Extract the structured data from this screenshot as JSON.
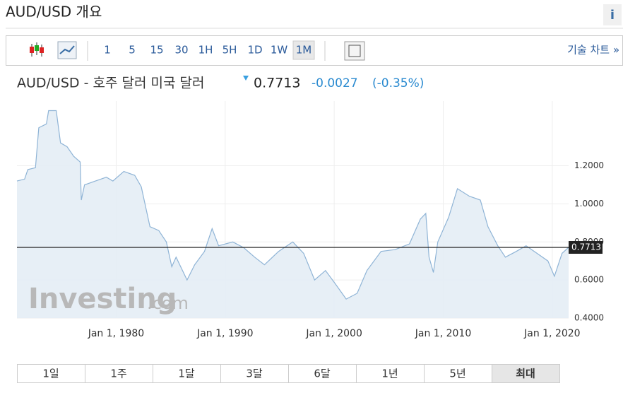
{
  "header": {
    "title": "AUD/USD 개요",
    "info": "i"
  },
  "toolbar": {
    "intervals": [
      "1",
      "5",
      "15",
      "30",
      "1H",
      "5H",
      "1D",
      "1W",
      "1M"
    ],
    "selected": "1M",
    "tech_link": "기술 차트 »"
  },
  "quote": {
    "name": "AUD/USD - 호주 달러 미국 달러",
    "price": "0.7713",
    "change": "-0.0027",
    "change_pct": "(-0.35%)"
  },
  "watermark": {
    "brand": "Investing",
    "suffix": ".com"
  },
  "chart_data": {
    "type": "area",
    "x": [
      1970.9,
      1971.6,
      1971.9,
      1972.6,
      1972.9,
      1973.6,
      1973.8,
      1974.5,
      1974.9,
      1975.5,
      1976.1,
      1976.7,
      1976.8,
      1977.1,
      1978.1,
      1979.1,
      1979.7,
      1980.7,
      1981.7,
      1982.3,
      1983.1,
      1983.9,
      1984.6,
      1985.1,
      1985.5,
      1986.5,
      1987.2,
      1988.1,
      1988.8,
      1989.4,
      1990.7,
      1991.7,
      1992.7,
      1993.6,
      1994.9,
      1996.2,
      1997.2,
      1998.2,
      1999.2,
      2000.1,
      2001.1,
      2002.1,
      2003.0,
      2004.3,
      2005.6,
      2006.9,
      2007.9,
      2008.4,
      2008.7,
      2009.1,
      2009.5,
      2010.5,
      2011.3,
      2012.4,
      2013.4,
      2014.1,
      2015.0,
      2015.7,
      2016.7,
      2017.6,
      2018.6,
      2019.6,
      2020.2,
      2020.9,
      2021.5
    ],
    "series": [
      {
        "name": "AUD/USD",
        "color": "#8fb4d6",
        "values": [
          1.12,
          1.13,
          1.18,
          1.19,
          1.4,
          1.42,
          1.49,
          1.49,
          1.32,
          1.3,
          1.25,
          1.22,
          1.02,
          1.1,
          1.12,
          1.14,
          1.12,
          1.17,
          1.15,
          1.09,
          0.88,
          0.86,
          0.8,
          0.67,
          0.72,
          0.6,
          0.68,
          0.75,
          0.87,
          0.78,
          0.8,
          0.77,
          0.72,
          0.68,
          0.75,
          0.8,
          0.74,
          0.6,
          0.65,
          0.58,
          0.5,
          0.53,
          0.65,
          0.75,
          0.76,
          0.79,
          0.92,
          0.95,
          0.72,
          0.64,
          0.8,
          0.93,
          1.08,
          1.04,
          1.02,
          0.88,
          0.78,
          0.72,
          0.75,
          0.78,
          0.74,
          0.7,
          0.62,
          0.74,
          0.7713
        ]
      }
    ],
    "last_price": 0.7713,
    "xlim": [
      1970.9,
      2021.5
    ],
    "xticks": [
      {
        "value": 1980,
        "label": "Jan 1, 1980"
      },
      {
        "value": 1990,
        "label": "Jan 1, 1990"
      },
      {
        "value": 2000,
        "label": "Jan 1, 2000"
      },
      {
        "value": 2010,
        "label": "Jan 1, 2010"
      },
      {
        "value": 2020,
        "label": "Jan 1, 2020"
      }
    ],
    "ylim": [
      0.4,
      1.54
    ],
    "yticks": [
      {
        "value": 0.4,
        "label": "0.4000"
      },
      {
        "value": 0.6,
        "label": "0.6000"
      },
      {
        "value": 0.8,
        "label": "0.8000"
      },
      {
        "value": 1.0,
        "label": "1.0000"
      },
      {
        "value": 1.2,
        "label": "1.2000"
      }
    ],
    "grid": true
  },
  "ranges": {
    "items": [
      "1일",
      "1주",
      "1달",
      "3달",
      "6달",
      "1년",
      "5년",
      "최대"
    ],
    "selected": "최대"
  }
}
